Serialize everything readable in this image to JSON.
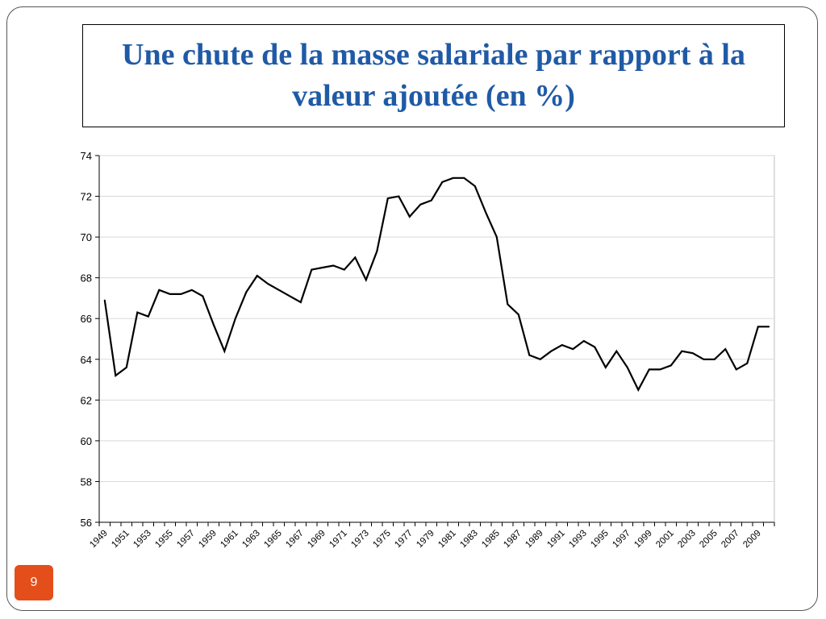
{
  "slide": {
    "title": "Une chute de la masse salariale par rapport à la valeur ajoutée (en %)",
    "page_number": "9"
  },
  "colors": {
    "title": "#1f5aa6",
    "page_badge": "#e34e1b",
    "line": "#000000",
    "grid": "#d9d9d9"
  },
  "chart_data": {
    "type": "line",
    "title": "",
    "xlabel": "",
    "ylabel": "",
    "ylim": [
      56,
      74
    ],
    "yticks": [
      56,
      58,
      60,
      62,
      64,
      66,
      68,
      70,
      72,
      74
    ],
    "xtick_labels": [
      "1949",
      "1951",
      "1953",
      "1955",
      "1957",
      "1959",
      "1961",
      "1963",
      "1965",
      "1967",
      "1969",
      "1971",
      "1973",
      "1975",
      "1977",
      "1979",
      "1981",
      "1983",
      "1985",
      "1987",
      "1989",
      "1991",
      "1993",
      "1995",
      "1997",
      "1999",
      "2001",
      "2003",
      "2005",
      "2007",
      "2009"
    ],
    "grid": "horizontal",
    "legend": "none",
    "x": [
      1949,
      1950,
      1951,
      1952,
      1953,
      1954,
      1955,
      1956,
      1957,
      1958,
      1959,
      1960,
      1961,
      1962,
      1963,
      1964,
      1965,
      1966,
      1967,
      1968,
      1969,
      1970,
      1971,
      1972,
      1973,
      1974,
      1975,
      1976,
      1977,
      1978,
      1979,
      1980,
      1981,
      1982,
      1983,
      1984,
      1985,
      1986,
      1987,
      1988,
      1989,
      1990,
      1991,
      1992,
      1993,
      1994,
      1995,
      1996,
      1997,
      1998,
      1999,
      2000,
      2001,
      2002,
      2003,
      2004,
      2005,
      2006,
      2007,
      2008,
      2009,
      2010
    ],
    "series": [
      {
        "values": [
          66.9,
          63.2,
          63.6,
          66.3,
          66.1,
          67.4,
          67.2,
          67.2,
          67.4,
          67.1,
          65.7,
          64.4,
          66.0,
          67.3,
          68.1,
          67.7,
          67.4,
          67.1,
          66.8,
          68.4,
          68.5,
          68.6,
          68.4,
          69.0,
          67.9,
          69.3,
          71.9,
          72.0,
          71.0,
          71.6,
          71.8,
          72.7,
          72.9,
          72.9,
          72.5,
          71.2,
          70.0,
          66.7,
          66.2,
          64.2,
          64.0,
          64.4,
          64.7,
          64.5,
          64.9,
          64.6,
          63.6,
          64.4,
          63.6,
          62.5,
          63.5,
          63.5,
          63.7,
          64.4,
          64.3,
          64.0,
          64.0,
          64.5,
          63.5,
          63.8,
          65.6,
          65.6
        ]
      }
    ]
  }
}
